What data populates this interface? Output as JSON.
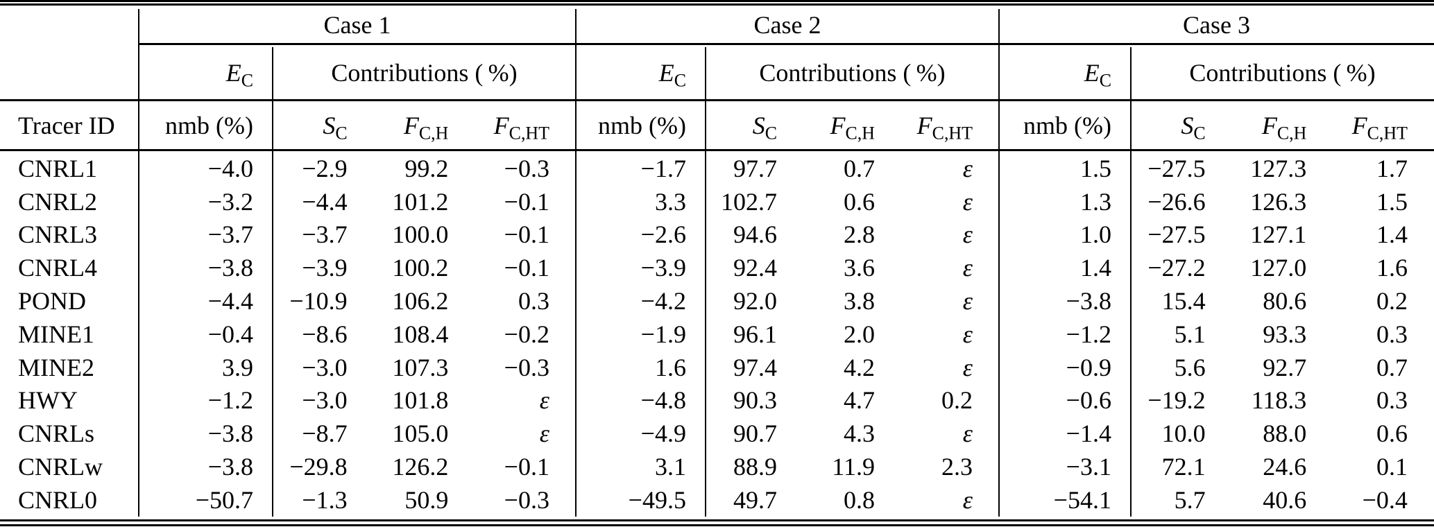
{
  "epsilon": "ε",
  "header": {
    "cases": [
      "Case 1",
      "Case 2",
      "Case 3"
    ],
    "ec_base": "E",
    "ec_sub": "C",
    "contributions": "Contributions ( %)",
    "tracer": "Tracer ID",
    "nmb": "nmb (%)",
    "cols": [
      {
        "base": "S",
        "sub": "C"
      },
      {
        "base": "F",
        "sub": "C,H"
      },
      {
        "base": "F",
        "sub": "C,HT"
      }
    ]
  },
  "rows": [
    {
      "id": "CNRL1",
      "cells": [
        "−4.0",
        "−2.9",
        "99.2",
        "−0.3",
        "−1.7",
        "97.7",
        "0.7",
        "ε",
        "1.5",
        "−27.5",
        "127.3",
        "1.7"
      ]
    },
    {
      "id": "CNRL2",
      "cells": [
        "−3.2",
        "−4.4",
        "101.2",
        "−0.1",
        "3.3",
        "102.7",
        "0.6",
        "ε",
        "1.3",
        "−26.6",
        "126.3",
        "1.5"
      ]
    },
    {
      "id": "CNRL3",
      "cells": [
        "−3.7",
        "−3.7",
        "100.0",
        "−0.1",
        "−2.6",
        "94.6",
        "2.8",
        "ε",
        "1.0",
        "−27.5",
        "127.1",
        "1.4"
      ]
    },
    {
      "id": "CNRL4",
      "cells": [
        "−3.8",
        "−3.9",
        "100.2",
        "−0.1",
        "−3.9",
        "92.4",
        "3.6",
        "ε",
        "1.4",
        "−27.2",
        "127.0",
        "1.6"
      ]
    },
    {
      "id": "POND",
      "cells": [
        "−4.4",
        "−10.9",
        "106.2",
        "0.3",
        "−4.2",
        "92.0",
        "3.8",
        "ε",
        "−3.8",
        "15.4",
        "80.6",
        "0.2"
      ]
    },
    {
      "id": "MINE1",
      "cells": [
        "−0.4",
        "−8.6",
        "108.4",
        "−0.2",
        "−1.9",
        "96.1",
        "2.0",
        "ε",
        "−1.2",
        "5.1",
        "93.3",
        "0.3"
      ]
    },
    {
      "id": "MINE2",
      "cells": [
        "3.9",
        "−3.0",
        "107.3",
        "−0.3",
        "1.6",
        "97.4",
        "4.2",
        "ε",
        "−0.9",
        "5.6",
        "92.7",
        "0.7"
      ]
    },
    {
      "id": "HWY",
      "cells": [
        "−1.2",
        "−3.0",
        "101.8",
        "ε",
        "−4.8",
        "90.3",
        "4.7",
        "0.2",
        "−0.6",
        "−19.2",
        "118.3",
        "0.3"
      ]
    },
    {
      "id": "CNRLs",
      "cells": [
        "−3.8",
        "−8.7",
        "105.0",
        "ε",
        "−4.9",
        "90.7",
        "4.3",
        "ε",
        "−1.4",
        "10.0",
        "88.0",
        "0.6"
      ]
    },
    {
      "id": "CNRLw",
      "cells": [
        "−3.8",
        "−29.8",
        "126.2",
        "−0.1",
        "3.1",
        "88.9",
        "11.9",
        "2.3",
        "−3.1",
        "72.1",
        "24.6",
        "0.1"
      ]
    },
    {
      "id": "CNRL0",
      "cells": [
        "−50.7",
        "−1.3",
        "50.9",
        "−0.3",
        "−49.5",
        "49.7",
        "0.8",
        "ε",
        "−54.1",
        "5.7",
        "40.6",
        "−0.4"
      ]
    }
  ]
}
